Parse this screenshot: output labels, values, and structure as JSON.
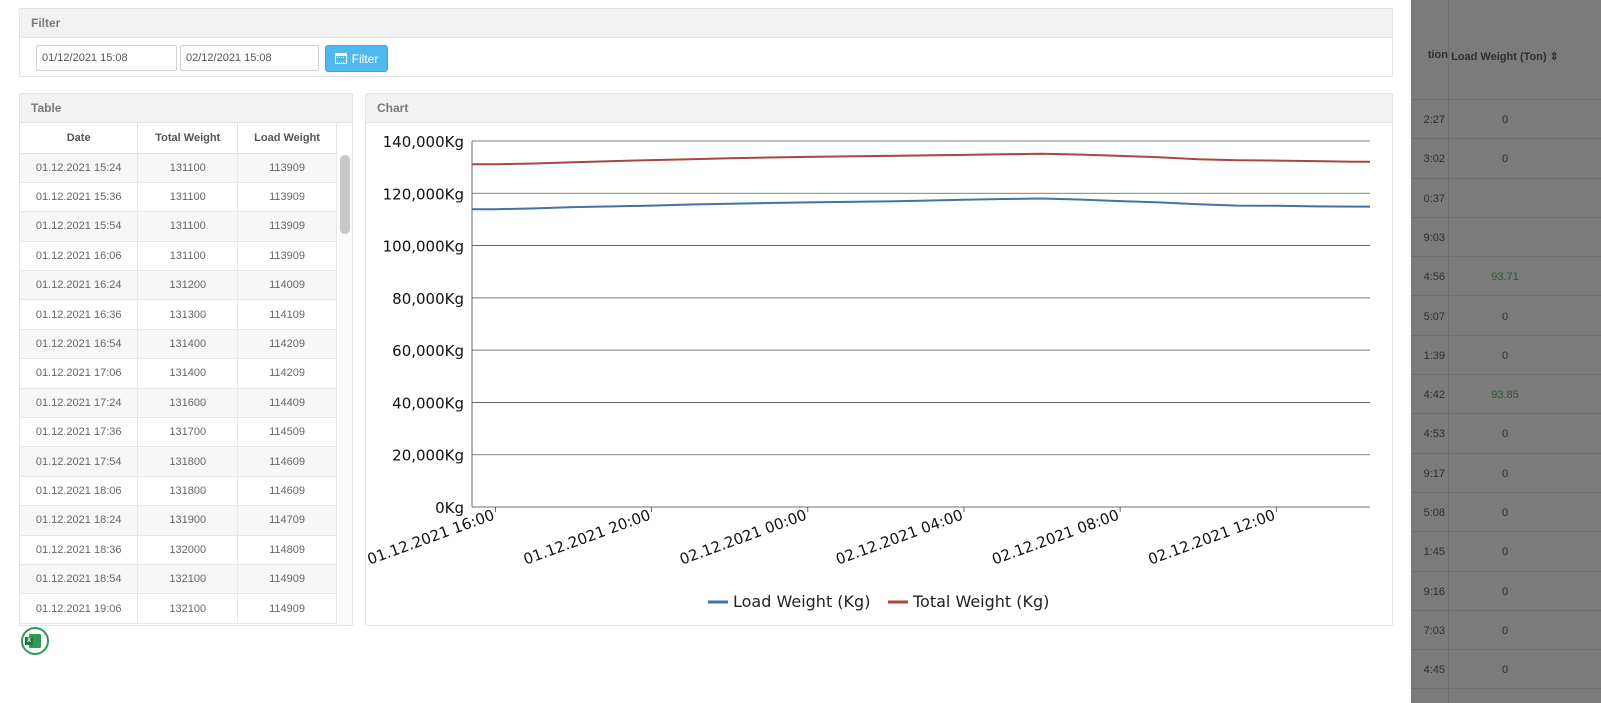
{
  "filter": {
    "title": "Filter",
    "from_value": "01/12/2021 15:08",
    "to_value": "02/12/2021 15:08",
    "button_label": "Filter"
  },
  "table": {
    "title": "Table",
    "headers": [
      "Date",
      "Total Weight",
      "Load Weight"
    ],
    "rows": [
      [
        "01.12.2021 15:24",
        "131100",
        "113909"
      ],
      [
        "01.12.2021 15:36",
        "131100",
        "113909"
      ],
      [
        "01.12.2021 15:54",
        "131100",
        "113909"
      ],
      [
        "01.12.2021 16:06",
        "131100",
        "113909"
      ],
      [
        "01.12.2021 16:24",
        "131200",
        "114009"
      ],
      [
        "01.12.2021 16:36",
        "131300",
        "114109"
      ],
      [
        "01.12.2021 16:54",
        "131400",
        "114209"
      ],
      [
        "01.12.2021 17:06",
        "131400",
        "114209"
      ],
      [
        "01.12.2021 17:24",
        "131600",
        "114409"
      ],
      [
        "01.12.2021 17:36",
        "131700",
        "114509"
      ],
      [
        "01.12.2021 17:54",
        "131800",
        "114609"
      ],
      [
        "01.12.2021 18:06",
        "131800",
        "114609"
      ],
      [
        "01.12.2021 18:24",
        "131900",
        "114709"
      ],
      [
        "01.12.2021 18:36",
        "132000",
        "114809"
      ],
      [
        "01.12.2021 18:54",
        "132100",
        "114909"
      ],
      [
        "01.12.2021 19:06",
        "132100",
        "114909"
      ]
    ]
  },
  "chart": {
    "title": "Chart",
    "colors": {
      "load": "#4572a7",
      "total": "#aa4643"
    }
  },
  "chart_data": {
    "type": "line",
    "ylim": [
      0,
      140000
    ],
    "y_ticks": [
      "0Kg",
      "20,000Kg",
      "40,000Kg",
      "60,000Kg",
      "80,000Kg",
      "100,000Kg",
      "120,000Kg",
      "140,000Kg"
    ],
    "x_range": [
      15.4,
      38.4
    ],
    "x_ticks": [
      {
        "x": 16,
        "label": "01.12.2021 16:00"
      },
      {
        "x": 20,
        "label": "01.12.2021 20:00"
      },
      {
        "x": 24,
        "label": "02.12.2021 00:00"
      },
      {
        "x": 28,
        "label": "02.12.2021 04:00"
      },
      {
        "x": 32,
        "label": "02.12.2021 08:00"
      },
      {
        "x": 36,
        "label": "02.12.2021 12:00"
      }
    ],
    "series": [
      {
        "name": "Load Weight (Kg)",
        "x": [
          15.4,
          16,
          17,
          18,
          19,
          20,
          21,
          22,
          23,
          24,
          25,
          26,
          27,
          28,
          29,
          30,
          31,
          32,
          33,
          34,
          35,
          36,
          37,
          38,
          38.4
        ],
        "y": [
          113909,
          113909,
          114209,
          114709,
          115000,
          115300,
          115700,
          116000,
          116300,
          116500,
          116700,
          116900,
          117200,
          117500,
          117800,
          118000,
          117600,
          117000,
          116500,
          115800,
          115300,
          115200,
          115000,
          114900,
          114900
        ]
      },
      {
        "name": "Total Weight (Kg)",
        "x": [
          15.4,
          16,
          17,
          18,
          19,
          20,
          21,
          22,
          23,
          24,
          25,
          26,
          27,
          28,
          29,
          30,
          31,
          32,
          33,
          34,
          35,
          36,
          37,
          38,
          38.4
        ],
        "y": [
          131100,
          131100,
          131400,
          131900,
          132300,
          132700,
          133000,
          133400,
          133700,
          133900,
          134100,
          134300,
          134500,
          134700,
          134900,
          135100,
          134800,
          134300,
          133800,
          133000,
          132600,
          132500,
          132300,
          132100,
          132100
        ]
      }
    ]
  },
  "export": {
    "icon": "excel-icon"
  },
  "backdrop": {
    "header_1": "tion",
    "header_2": "Load Weight (Ton) ⇕",
    "rows": [
      [
        "2:27",
        "0"
      ],
      [
        "3:02",
        "0"
      ],
      [
        "0:37",
        ""
      ],
      [
        "9:03",
        ""
      ],
      [
        "4:56",
        "93.71"
      ],
      [
        "5:07",
        "0"
      ],
      [
        "1:39",
        "0"
      ],
      [
        "4:42",
        "93.85"
      ],
      [
        "4:53",
        "0"
      ],
      [
        "9:17",
        "0"
      ],
      [
        "5:08",
        "0"
      ],
      [
        "1:45",
        "0"
      ],
      [
        "9:16",
        "0"
      ],
      [
        "7:03",
        "0"
      ],
      [
        "4:45",
        "0"
      ]
    ]
  }
}
